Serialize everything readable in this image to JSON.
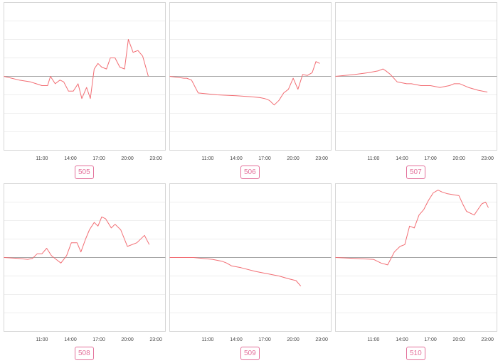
{
  "style": {
    "line_color": "#f26d73",
    "badge_color": "#e3709a",
    "frame_color": "#d6d6d6",
    "grid_color": "#eeeeee",
    "baseline_color": "#a6a6a6"
  },
  "chart_data": [
    {
      "type": "line",
      "label": "505",
      "xlim": [
        7,
        24
      ],
      "ylim": [
        -4,
        4
      ],
      "xticks": [
        11,
        14,
        17,
        20,
        23
      ],
      "xtick_labels": [
        "11:00",
        "14:00",
        "17:00",
        "20:00",
        "23:00"
      ],
      "grid": true,
      "baseline": 0,
      "x": [
        7.0,
        8.6,
        9.8,
        10.4,
        11.0,
        11.6,
        11.9,
        12.4,
        12.9,
        13.3,
        13.8,
        14.3,
        14.8,
        15.2,
        15.7,
        16.1,
        16.5,
        16.9,
        17.3,
        17.8,
        18.2,
        18.7,
        19.2,
        19.7,
        20.1,
        20.6,
        21.1,
        21.6,
        22.2
      ],
      "y": [
        0.0,
        -0.2,
        -0.3,
        -0.4,
        -0.5,
        -0.5,
        0.0,
        -0.4,
        -0.2,
        -0.3,
        -0.8,
        -0.8,
        -0.4,
        -1.2,
        -0.6,
        -1.2,
        0.4,
        0.7,
        0.5,
        0.4,
        1.0,
        1.0,
        0.5,
        0.4,
        2.0,
        1.3,
        1.4,
        1.1,
        0.0
      ]
    },
    {
      "type": "line",
      "label": "506",
      "xlim": [
        7,
        24
      ],
      "ylim": [
        -4,
        4
      ],
      "xticks": [
        11,
        14,
        17,
        20,
        23
      ],
      "xtick_labels": [
        "11:00",
        "14:00",
        "17:00",
        "20:00",
        "23:00"
      ],
      "grid": true,
      "baseline": 0,
      "x": [
        7.0,
        8.5,
        8.8,
        9.3,
        10.0,
        12.0,
        14.0,
        15.5,
        16.5,
        17.0,
        17.5,
        18.0,
        18.5,
        19.0,
        19.5,
        20.0,
        20.5,
        21.0,
        21.5,
        22.0,
        22.4,
        22.8
      ],
      "y": [
        0.0,
        -0.1,
        -0.1,
        -0.2,
        -0.9,
        -1.0,
        -1.05,
        -1.1,
        -1.15,
        -1.2,
        -1.3,
        -1.55,
        -1.3,
        -0.9,
        -0.7,
        -0.1,
        -0.7,
        0.1,
        0.05,
        0.2,
        0.8,
        0.7
      ]
    },
    {
      "type": "line",
      "label": "507",
      "xlim": [
        7,
        24
      ],
      "ylim": [
        -4,
        4
      ],
      "xticks": [
        11,
        14,
        17,
        20,
        23
      ],
      "xtick_labels": [
        "11:00",
        "14:00",
        "17:00",
        "20:00",
        "23:00"
      ],
      "grid": true,
      "baseline": 0,
      "x": [
        7.0,
        9.0,
        10.5,
        11.5,
        12.0,
        12.3,
        12.8,
        13.5,
        14.5,
        15.0,
        16.0,
        17.0,
        18.0,
        19.0,
        19.5,
        20.1,
        21.0,
        22.0,
        23.0
      ],
      "y": [
        0.0,
        0.1,
        0.2,
        0.3,
        0.4,
        0.3,
        0.1,
        -0.3,
        -0.4,
        -0.4,
        -0.5,
        -0.5,
        -0.6,
        -0.5,
        -0.4,
        -0.4,
        -0.6,
        -0.75,
        -0.85
      ]
    },
    {
      "type": "line",
      "label": "508",
      "xlim": [
        7,
        24
      ],
      "ylim": [
        -4,
        4
      ],
      "xticks": [
        11,
        14,
        17,
        20,
        23
      ],
      "xtick_labels": [
        "11:00",
        "14:00",
        "17:00",
        "20:00",
        "23:00"
      ],
      "grid": true,
      "baseline": 0,
      "x": [
        7.0,
        8.5,
        9.5,
        10.0,
        10.5,
        11.0,
        11.5,
        12.0,
        12.5,
        13.0,
        13.6,
        14.1,
        14.7,
        15.1,
        15.6,
        16.0,
        16.5,
        16.9,
        17.3,
        17.7,
        18.3,
        18.7,
        19.3,
        20.0,
        21.0,
        21.8,
        22.3
      ],
      "y": [
        0.0,
        -0.05,
        -0.1,
        -0.05,
        0.2,
        0.2,
        0.5,
        0.1,
        -0.1,
        -0.3,
        0.1,
        0.8,
        0.8,
        0.3,
        1.0,
        1.5,
        1.9,
        1.7,
        2.2,
        2.1,
        1.6,
        1.8,
        1.5,
        0.6,
        0.8,
        1.2,
        0.7
      ]
    },
    {
      "type": "line",
      "label": "509",
      "xlim": [
        7,
        24
      ],
      "ylim": [
        -4,
        4
      ],
      "xticks": [
        11,
        14,
        17,
        20,
        23
      ],
      "xtick_labels": [
        "11:00",
        "14:00",
        "17:00",
        "20:00",
        "23:00"
      ],
      "grid": true,
      "baseline": 0,
      "x": [
        7.0,
        9.5,
        11.5,
        12.5,
        13.0,
        13.5,
        14.5,
        16.0,
        17.0,
        18.5,
        19.5,
        20.3,
        20.8
      ],
      "y": [
        0.0,
        0.0,
        -0.1,
        -0.2,
        -0.3,
        -0.45,
        -0.55,
        -0.75,
        -0.85,
        -1.0,
        -1.15,
        -1.25,
        -1.55
      ]
    },
    {
      "type": "line",
      "label": "510",
      "xlim": [
        7,
        24
      ],
      "ylim": [
        -4,
        4
      ],
      "xticks": [
        11,
        14,
        17,
        20,
        23
      ],
      "xtick_labels": [
        "11:00",
        "14:00",
        "17:00",
        "20:00",
        "23:00"
      ],
      "grid": true,
      "baseline": 0,
      "x": [
        7.0,
        9.0,
        11.0,
        11.8,
        12.5,
        13.2,
        13.8,
        14.3,
        14.8,
        15.3,
        15.8,
        16.3,
        16.8,
        17.3,
        17.8,
        18.2,
        18.8,
        19.4,
        20.0,
        20.4,
        20.8,
        21.2,
        21.6,
        22.0,
        22.4,
        22.8,
        23.1
      ],
      "y": [
        0.0,
        -0.05,
        -0.1,
        -0.3,
        -0.4,
        0.3,
        0.6,
        0.7,
        1.7,
        1.6,
        2.3,
        2.6,
        3.1,
        3.5,
        3.65,
        3.55,
        3.45,
        3.4,
        3.35,
        2.9,
        2.5,
        2.4,
        2.3,
        2.6,
        2.9,
        3.0,
        2.7
      ]
    }
  ]
}
